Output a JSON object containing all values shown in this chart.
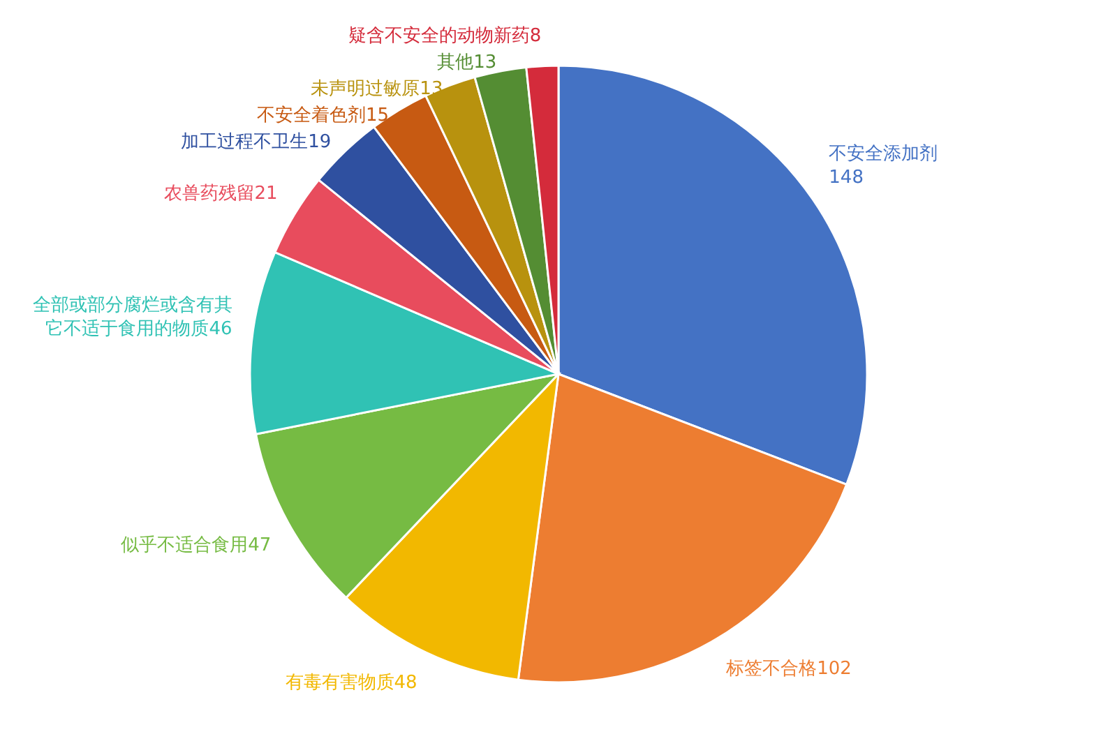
{
  "chart_data": {
    "type": "pie",
    "categories": [
      "不安全添加剂",
      "标签不合格",
      "有毒有害物质",
      "似乎不适合食用",
      "全部或部分腐烂或含有其它不适于食用的物质",
      "农兽药残留",
      "加工过程不卫生",
      "不安全着色剂",
      "未声明过敏原",
      "其他",
      "疑含不安全的动物新药"
    ],
    "values": [
      148,
      102,
      48,
      47,
      46,
      21,
      19,
      15,
      13,
      13,
      8
    ],
    "colors": [
      "#4472c4",
      "#ed7d31",
      "#f2b800",
      "#76bb43",
      "#30c2b4",
      "#e84c5d",
      "#2f50a0",
      "#c75a12",
      "#b8920e",
      "#548d33",
      "#d42b3b"
    ],
    "data_labels": true
  }
}
